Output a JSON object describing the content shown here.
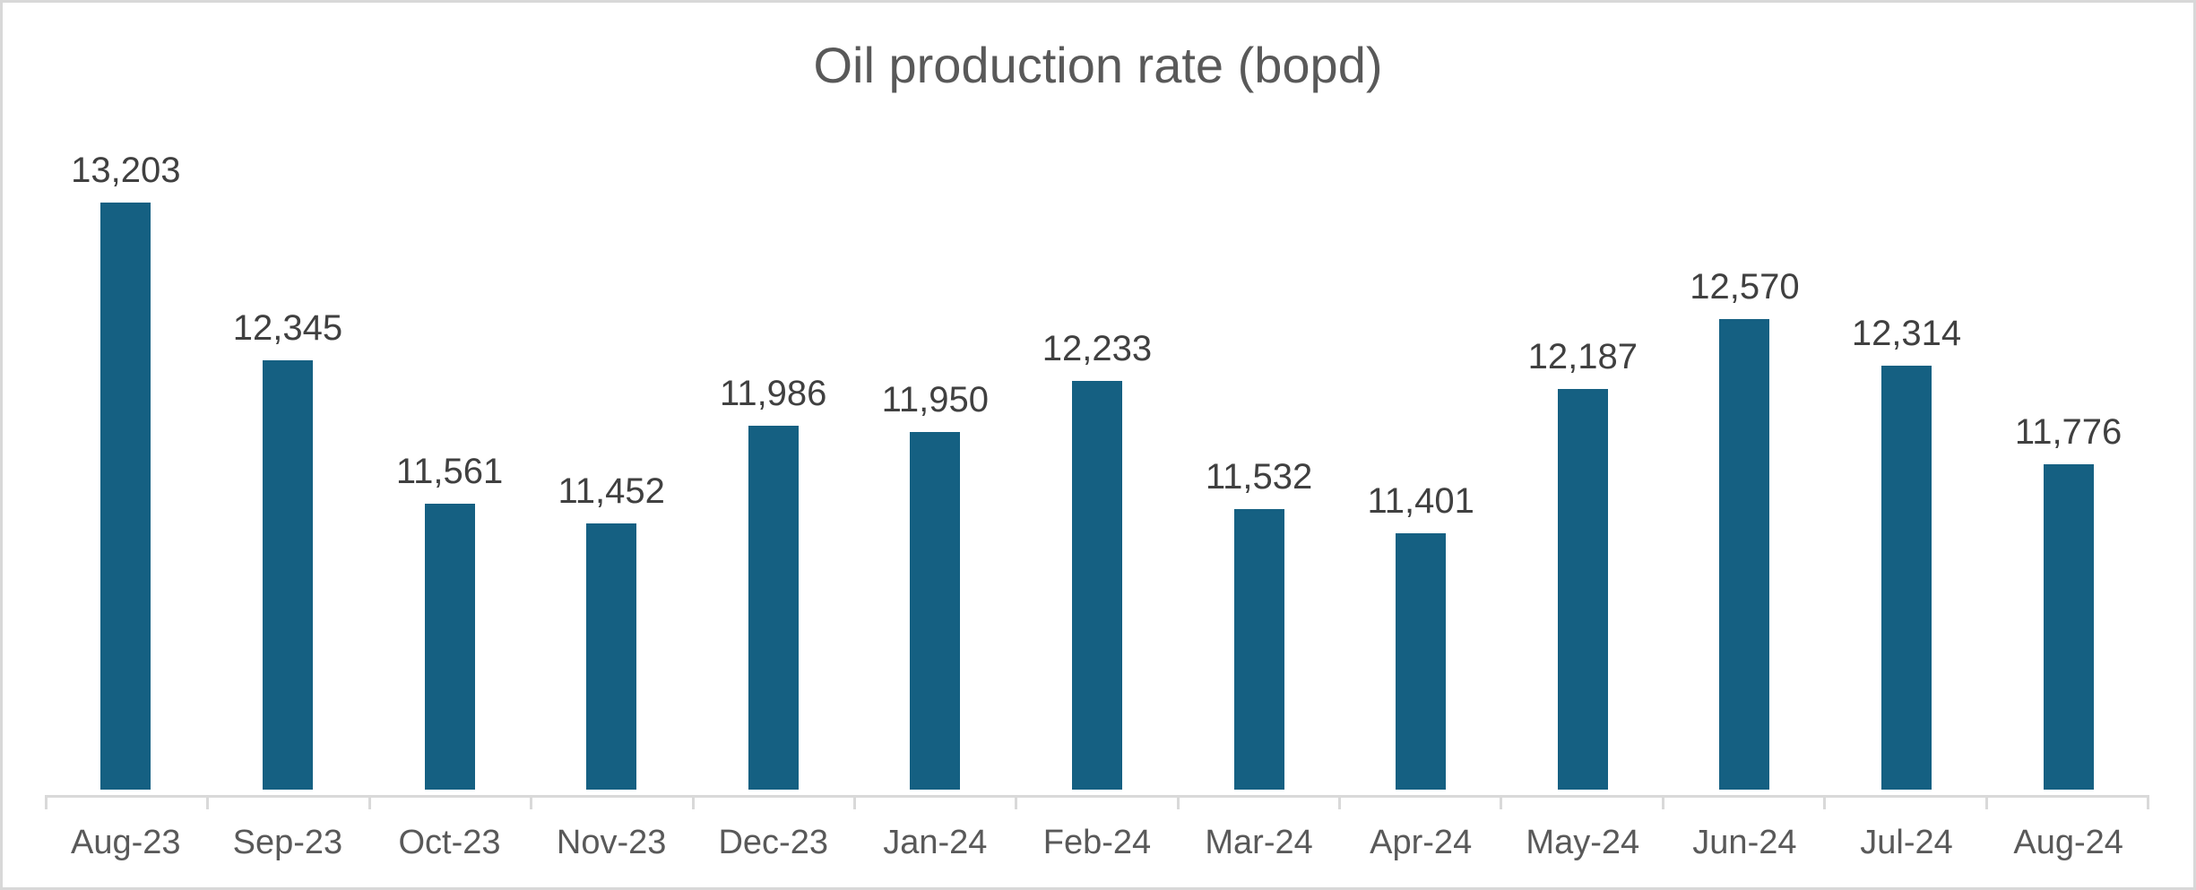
{
  "window": {
    "background": "#ffffff",
    "border_color": "#d8d8d8"
  },
  "chart_data": {
    "type": "bar",
    "title": "Oil production rate (bopd)",
    "categories": [
      "Aug-23",
      "Sep-23",
      "Oct-23",
      "Nov-23",
      "Dec-23",
      "Jan-24",
      "Feb-24",
      "Mar-24",
      "Apr-24",
      "May-24",
      "Jun-24",
      "Jul-24",
      "Aug-24"
    ],
    "values": [
      13203,
      12345,
      11561,
      11452,
      11986,
      11950,
      12233,
      11532,
      11401,
      12187,
      12570,
      12314,
      11776
    ],
    "data_labels": [
      "13,203",
      "12,345",
      "11,561",
      "11,452",
      "11,986",
      "11,950",
      "12,233",
      "11,532",
      "11,401",
      "12,187",
      "12,570",
      "12,314",
      "11,776"
    ],
    "xlabel": "",
    "ylabel": "",
    "ylim": [
      10000,
      13640
    ],
    "grid": false,
    "legend": false,
    "y_axis_visible": false,
    "data_labels_position": "outside-end",
    "colors": {
      "bar": "#156082",
      "title": "#595959",
      "data_label": "#404040",
      "axis_label": "#595959",
      "axis_line": "#d9d9d9"
    }
  }
}
